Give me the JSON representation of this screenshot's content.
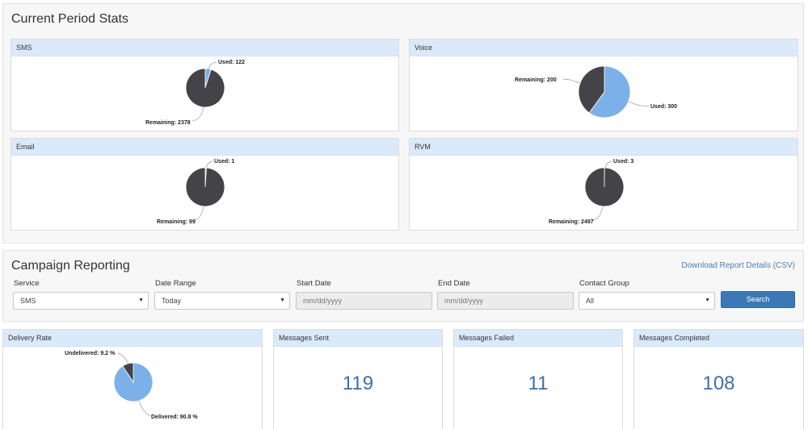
{
  "current_period": {
    "title": "Current Period Stats",
    "panels": [
      {
        "label": "SMS",
        "used_label": "Used: 122",
        "remaining_label": "Remaining: 2378",
        "used": 122,
        "remaining": 2378
      },
      {
        "label": "Voice",
        "used_label": "Used: 300",
        "remaining_label": "Remaining: 200",
        "used": 300,
        "remaining": 200
      },
      {
        "label": "Email",
        "used_label": "Used: 1",
        "remaining_label": "Remaining: 99",
        "used": 1,
        "remaining": 99
      },
      {
        "label": "RVM",
        "used_label": "Used: 3",
        "remaining_label": "Remaining: 2497",
        "used": 3,
        "remaining": 2497
      }
    ]
  },
  "campaign": {
    "title": "Campaign Reporting",
    "download_link": "Download Report Details (CSV)",
    "filters": {
      "service_label": "Service",
      "service_value": "SMS",
      "date_range_label": "Date Range",
      "date_range_value": "Today",
      "start_date_label": "Start Date",
      "start_date_placeholder": "mm/dd/yyyy",
      "end_date_label": "End Date",
      "end_date_placeholder": "mm/dd/yyyy",
      "contact_group_label": "Contact Group",
      "contact_group_value": "All"
    },
    "search_button": "Search"
  },
  "delivery_rate": {
    "label": "Delivery Rate",
    "delivered_label": "Delivered: 90.8 %",
    "undelivered_label": "Undelivered: 9.2 %",
    "delivered": 90.8,
    "undelivered": 9.2
  },
  "stats": [
    {
      "label": "Messages Sent",
      "value": "119"
    },
    {
      "label": "Messages Failed",
      "value": "11"
    },
    {
      "label": "Messages Completed",
      "value": "108"
    }
  ],
  "colors": {
    "used": "#7cb0e8",
    "remaining": "#434348",
    "panel_header": "#dbeafb",
    "stat_value": "#3f6ea8",
    "search_button": "#3c78b5"
  }
}
